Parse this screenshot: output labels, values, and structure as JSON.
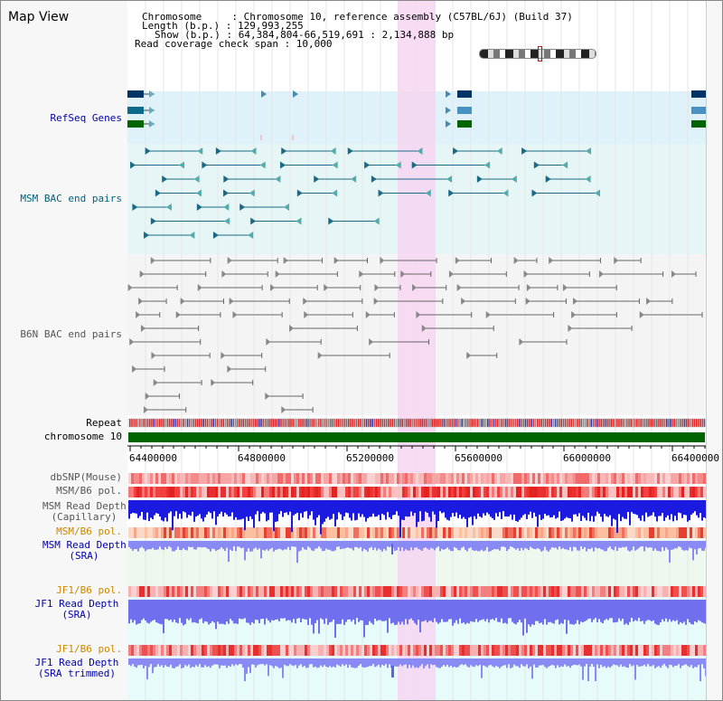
{
  "title": "Map View",
  "header": {
    "chromosome_line": "Chromosome     : Chromosome 10, reference assembly (C57BL/6J) (Build 37)",
    "length_line": "Length (b.p.) : 129,993,255",
    "show_line": "Show (b.p.) : 64,384,804-66,519,691 : 2,134,888 bp",
    "coverage_line": "Read coverage check span : 10,000"
  },
  "tracks": {
    "refseq": "RefSeq Genes",
    "msm_bac": "MSM BAC end pairs",
    "b6n_bac": "B6N BAC end pairs",
    "repeat": "Repeat",
    "chromosome": "chromosome 10",
    "dbsnp": "dbSNP(Mouse)",
    "msm_b6_pol_1": "MSM/B6 pol.",
    "msm_depth_cap_1": "MSM Read Depth",
    "msm_depth_cap_2": "(Capillary)",
    "msm_b6_pol_2": "MSM/B6 pol.",
    "msm_depth_sra_1": "MSM Read Depth",
    "msm_depth_sra_2": "(SRA)",
    "jf1_b6_pol_1": "JF1/B6 pol.",
    "jf1_depth_sra_1": "JF1 Read Depth",
    "jf1_depth_sra_2": "(SRA)",
    "jf1_b6_pol_2": "JF1/B6 pol.",
    "jf1_depth_trim_1": "JF1 Read Depth",
    "jf1_depth_trim_2": "(SRA trimmed)"
  },
  "axis": {
    "ticks": [
      "64400000",
      "64800000",
      "65200000",
      "65600000",
      "66000000",
      "66400000"
    ]
  },
  "colors": {
    "refseq_bg": "#dff1f9",
    "msm_bg": "#e7f6f6",
    "b6n_bg": "#f4f4f4",
    "highlight": "#f6d6f2",
    "chromosome": "#006400",
    "refseq_label": "#0000aa",
    "msm_label": "#00607a",
    "b6n_label": "#555555",
    "orange_label": "#cc8800",
    "blue_label": "#0000aa"
  }
}
